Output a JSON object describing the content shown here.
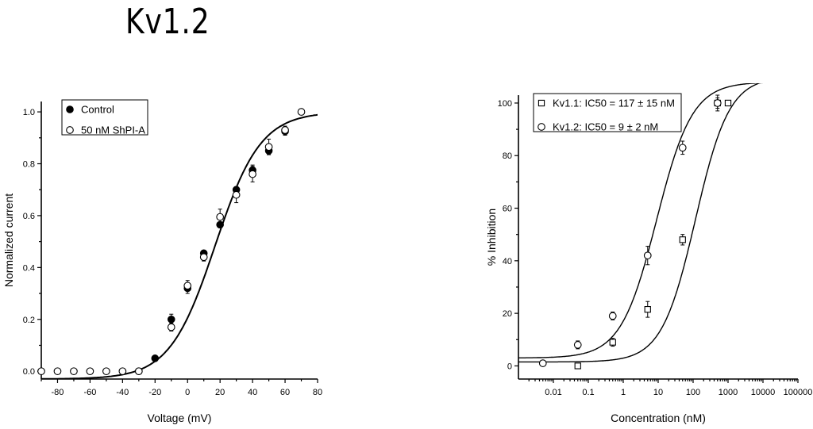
{
  "title": "Kv1.2",
  "chart_data": [
    {
      "type": "scatter",
      "xlabel": "Voltage (mV)",
      "ylabel": "Normalized current",
      "xlim": [
        -90,
        80
      ],
      "ylim": [
        -0.03,
        1.04
      ],
      "xticks": [
        -80,
        -60,
        -40,
        -20,
        0,
        20,
        40,
        60,
        80
      ],
      "yticks": [
        0.0,
        0.2,
        0.4,
        0.6,
        0.8,
        1.0
      ],
      "xtick_labels": [
        "-80",
        "-60",
        "-40",
        "-20",
        "0",
        "20",
        "40",
        "60",
        "80"
      ],
      "ytick_labels": [
        "0.0",
        "0.2",
        "0.4",
        "0.6",
        "0.8",
        "1.0"
      ],
      "legend_position": "top-left",
      "fit": {
        "type": "boltzmann",
        "bottom": -0.03,
        "top": 1.0,
        "v_half": 17,
        "slope": 14
      },
      "series": [
        {
          "name": "Control",
          "marker": "filled-circle",
          "x": [
            -30,
            -20,
            -10,
            0,
            10,
            20,
            30,
            40,
            50,
            60
          ],
          "y": [
            0.0,
            0.05,
            0.2,
            0.32,
            0.455,
            0.565,
            0.7,
            0.775,
            0.85,
            0.925
          ],
          "err": [
            0.01,
            0.01,
            0.02,
            0.02,
            0.01,
            0.01,
            0.01,
            0.02,
            0.015,
            0.015
          ]
        },
        {
          "name": "50 nM ShPI-A",
          "marker": "open-circle",
          "x": [
            -90,
            -80,
            -70,
            -60,
            -50,
            -40,
            -30,
            -10,
            0,
            10,
            20,
            30,
            40,
            50,
            60,
            70
          ],
          "y": [
            0.0,
            0.0,
            0.0,
            0.0,
            0.0,
            0.0,
            0.0,
            0.17,
            0.33,
            0.44,
            0.595,
            0.68,
            0.76,
            0.865,
            0.93,
            1.0
          ],
          "err": [
            0,
            0,
            0,
            0,
            0,
            0,
            0.01,
            0.015,
            0.02,
            0.015,
            0.03,
            0.03,
            0.03,
            0.03,
            0.015,
            0
          ]
        }
      ]
    },
    {
      "type": "scatter",
      "xscale": "log",
      "xlabel": "Concentration (nM)",
      "ylabel": "% Inhibition",
      "xlim": [
        0.001,
        100000
      ],
      "ylim": [
        -5,
        103
      ],
      "xticks": [
        0.01,
        0.1,
        1,
        10,
        100,
        1000,
        10000,
        100000
      ],
      "yticks": [
        0,
        20,
        40,
        60,
        80,
        100
      ],
      "xtick_labels": [
        "0.01",
        "0.1",
        "1",
        "10",
        "100",
        "1000",
        "10000",
        "100000"
      ],
      "ytick_labels": [
        "0",
        "20",
        "40",
        "60",
        "80",
        "100"
      ],
      "legend_position": "top-left",
      "series": [
        {
          "name": "Kv1.1: IC50 = 117 ± 15 nM",
          "marker": "open-square",
          "fit": {
            "bottom": 1.5,
            "top": 110,
            "ic50": 117,
            "hill": 0.9
          },
          "x": [
            0.05,
            0.5,
            5,
            50,
            500,
            1000
          ],
          "y": [
            0,
            9,
            21.5,
            48,
            100,
            100
          ],
          "err": [
            1,
            1.5,
            3,
            2,
            2,
            1
          ]
        },
        {
          "name": "Kv1.2: IC50 = 9 ± 2 nM",
          "marker": "open-circle",
          "fit": {
            "bottom": 3,
            "top": 108,
            "ic50": 9,
            "hill": 0.85
          },
          "x": [
            0.005,
            0.05,
            0.5,
            5,
            50,
            500
          ],
          "y": [
            1,
            8,
            19,
            42,
            83,
            100
          ],
          "err": [
            1,
            1.5,
            1.5,
            3.5,
            2.5,
            3
          ]
        }
      ]
    }
  ]
}
